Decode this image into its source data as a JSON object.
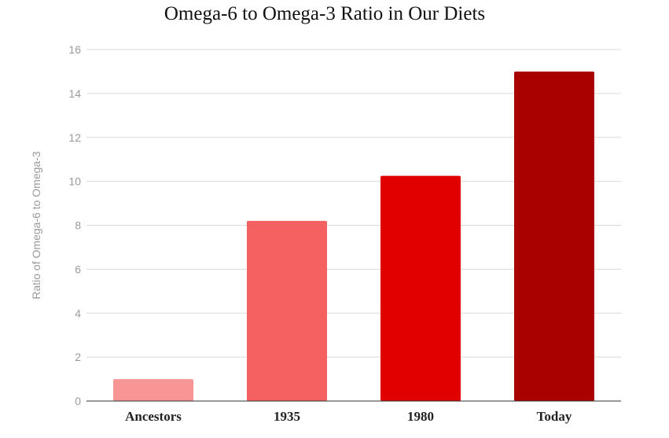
{
  "chart_data": {
    "type": "bar",
    "title": "Omega-6 to Omega-3 Ratio in Our Diets",
    "xlabel": "",
    "ylabel": "Ratio of Omega-6 to Omega-3",
    "categories": [
      "Ancestors",
      "1935",
      "1980",
      "Today"
    ],
    "values": [
      1,
      8.2,
      10.25,
      15
    ],
    "colors": [
      "#f89696",
      "#f56060",
      "#e00000",
      "#a90000"
    ],
    "ylim": [
      0,
      16
    ],
    "yticks": [
      "0",
      "2",
      "4",
      "6",
      "8",
      "10",
      "12",
      "14",
      "16"
    ],
    "grid": true,
    "legend": "none"
  }
}
